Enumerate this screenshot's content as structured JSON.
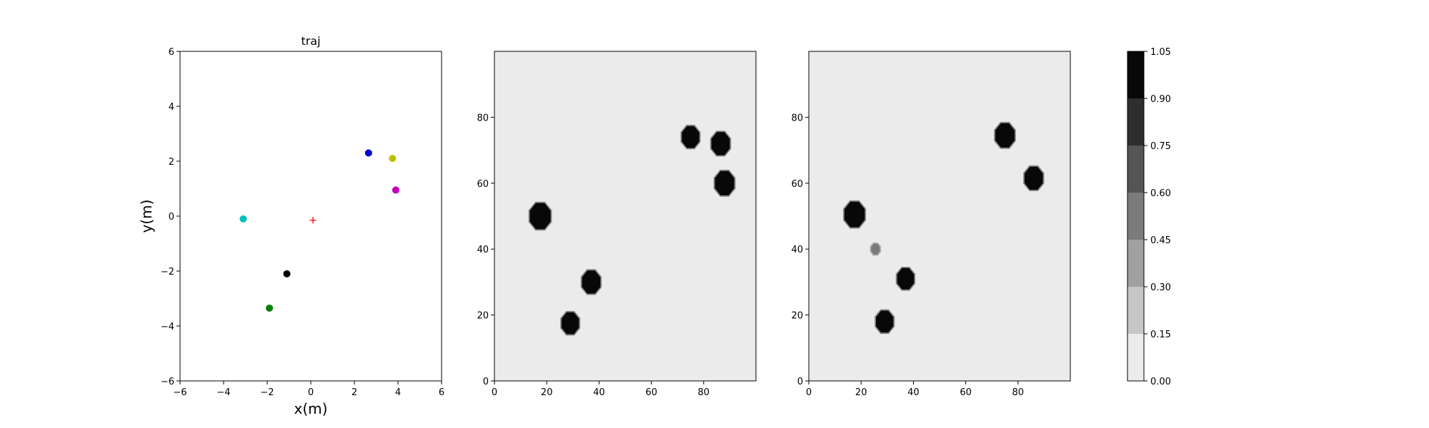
{
  "chart_data": [
    {
      "type": "scatter",
      "title": "traj",
      "xlabel": "x(m)",
      "ylabel": "y(m)",
      "xlim": [
        -6,
        6
      ],
      "ylim": [
        -6,
        6
      ],
      "xticks": [
        "−6",
        "−4",
        "−2",
        "0",
        "2",
        "4",
        "6"
      ],
      "yticks": [
        "−6",
        "−4",
        "−2",
        "0",
        "2",
        "4",
        "6"
      ],
      "grid": false,
      "points": [
        {
          "x": 2.65,
          "y": 2.3,
          "color": "#0000cc"
        },
        {
          "x": 3.75,
          "y": 2.1,
          "color": "#bfbf00"
        },
        {
          "x": 3.9,
          "y": 0.95,
          "color": "#bf00bf"
        },
        {
          "x": -3.1,
          "y": -0.1,
          "color": "#00bfbf"
        },
        {
          "x": -1.1,
          "y": -2.1,
          "color": "#000000"
        },
        {
          "x": -1.9,
          "y": -3.35,
          "color": "#008000"
        }
      ],
      "markers": [
        {
          "x": 0.1,
          "y": -0.15,
          "shape": "plus",
          "color": "#ff0000"
        }
      ]
    },
    {
      "type": "heatmap",
      "title": "",
      "xlim": [
        0,
        100
      ],
      "ylim": [
        0,
        100
      ],
      "xticks": [
        "0",
        "20",
        "40",
        "60",
        "80"
      ],
      "yticks": [
        "0",
        "20",
        "40",
        "60",
        "80"
      ],
      "background_value": 0.05,
      "blobs": [
        {
          "x": 17.5,
          "y": 50,
          "r": 4.3,
          "value": 1.0
        },
        {
          "x": 37,
          "y": 30,
          "r": 3.8,
          "value": 1.0
        },
        {
          "x": 29,
          "y": 17.5,
          "r": 3.6,
          "value": 1.0
        },
        {
          "x": 75,
          "y": 74,
          "r": 3.6,
          "value": 1.0
        },
        {
          "x": 86.5,
          "y": 72,
          "r": 3.8,
          "value": 1.0
        },
        {
          "x": 88,
          "y": 60,
          "r": 4.0,
          "value": 1.0
        }
      ]
    },
    {
      "type": "heatmap",
      "title": "",
      "xlim": [
        0,
        100
      ],
      "ylim": [
        0,
        100
      ],
      "xticks": [
        "0",
        "20",
        "40",
        "60",
        "80"
      ],
      "yticks": [
        "0",
        "20",
        "40",
        "60",
        "80"
      ],
      "background_value": 0.05,
      "blobs": [
        {
          "x": 17.5,
          "y": 50.5,
          "r": 4.2,
          "value": 1.0
        },
        {
          "x": 37,
          "y": 31,
          "r": 3.5,
          "value": 1.0
        },
        {
          "x": 29,
          "y": 18,
          "r": 3.6,
          "value": 1.0
        },
        {
          "x": 75,
          "y": 74.5,
          "r": 4.0,
          "value": 1.0
        },
        {
          "x": 86,
          "y": 61.5,
          "r": 3.8,
          "value": 1.0
        },
        {
          "x": 25.5,
          "y": 40,
          "r": 1.8,
          "value": 0.5
        }
      ]
    }
  ],
  "colorbar": {
    "ticks": [
      "0.00",
      "0.15",
      "0.30",
      "0.45",
      "0.60",
      "0.75",
      "0.90",
      "1.05"
    ],
    "levels": [
      0.0,
      0.15,
      0.3,
      0.45,
      0.6,
      0.75,
      0.9,
      1.05
    ],
    "colors": [
      "#ebebeb",
      "#c6c6c6",
      "#a0a0a0",
      "#7b7b7b",
      "#555555",
      "#2e2e2e",
      "#080808"
    ]
  }
}
